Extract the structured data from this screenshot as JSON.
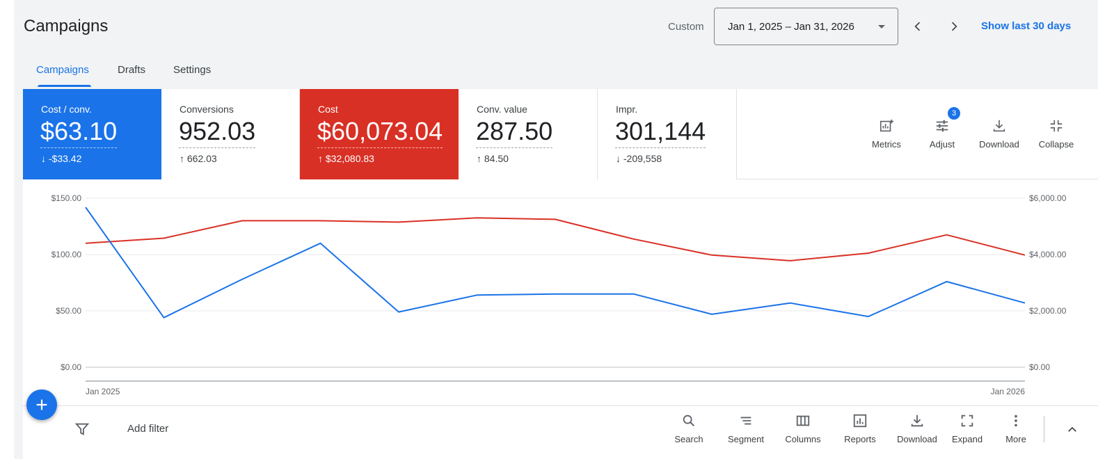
{
  "header": {
    "title": "Campaigns",
    "custom_label": "Custom",
    "date_range": "Jan 1, 2025 – Jan 31, 2026",
    "show_last": "Show last 30 days"
  },
  "tabs": [
    {
      "label": "Campaigns",
      "active": true
    },
    {
      "label": "Drafts",
      "active": false
    },
    {
      "label": "Settings",
      "active": false
    }
  ],
  "metrics": [
    {
      "label": "Cost / conv.",
      "value": "$63.10",
      "delta": "↓ -$33.42",
      "color": "#1a73e8"
    },
    {
      "label": "Conversions",
      "value": "952.03",
      "delta": "↑ 662.03"
    },
    {
      "label": "Cost",
      "value": "$60,073.04",
      "delta": "↑ $32,080.83",
      "color": "#d93025"
    },
    {
      "label": "Conv. value",
      "value": "287.50",
      "delta": "↑ 84.50"
    },
    {
      "label": "Impr.",
      "value": "301,144",
      "delta": "↓ -209,558"
    }
  ],
  "card_tools": {
    "metrics": "Metrics",
    "adjust": "Adjust",
    "adjust_badge": "3",
    "download": "Download",
    "collapse": "Collapse"
  },
  "chart_data": {
    "type": "line",
    "x_labels": [
      "Jan 2025",
      "Jan 2026"
    ],
    "left_axis": {
      "ticks": [
        "$150.00",
        "$100.00",
        "$50.00",
        "$0.00"
      ],
      "range": [
        0,
        150
      ]
    },
    "right_axis": {
      "ticks": [
        "$6,000.00",
        "$4,000.00",
        "$2,000.00",
        "$0.00"
      ],
      "range": [
        0,
        6000
      ]
    },
    "grid": true,
    "series": [
      {
        "color": "#1a73e8",
        "axis": "left",
        "values": [
          142,
          44,
          78,
          110,
          49,
          64,
          65,
          65,
          47,
          57,
          45,
          76,
          57
        ]
      },
      {
        "color": "#d93025",
        "axis": "right",
        "values": [
          4400,
          4580,
          5200,
          5200,
          5150,
          5300,
          5250,
          4550,
          3980,
          3780,
          4050,
          4700,
          3980
        ]
      }
    ]
  },
  "toolbar": {
    "add_filter": "Add filter",
    "items": [
      {
        "label": "Search",
        "icon": "search-icon"
      },
      {
        "label": "Segment",
        "icon": "segment-icon"
      },
      {
        "label": "Columns",
        "icon": "columns-icon"
      },
      {
        "label": "Reports",
        "icon": "reports-icon"
      },
      {
        "label": "Download",
        "icon": "download-icon"
      },
      {
        "label": "Expand",
        "icon": "expand-icon"
      },
      {
        "label": "More",
        "icon": "more-vert-icon"
      }
    ]
  }
}
